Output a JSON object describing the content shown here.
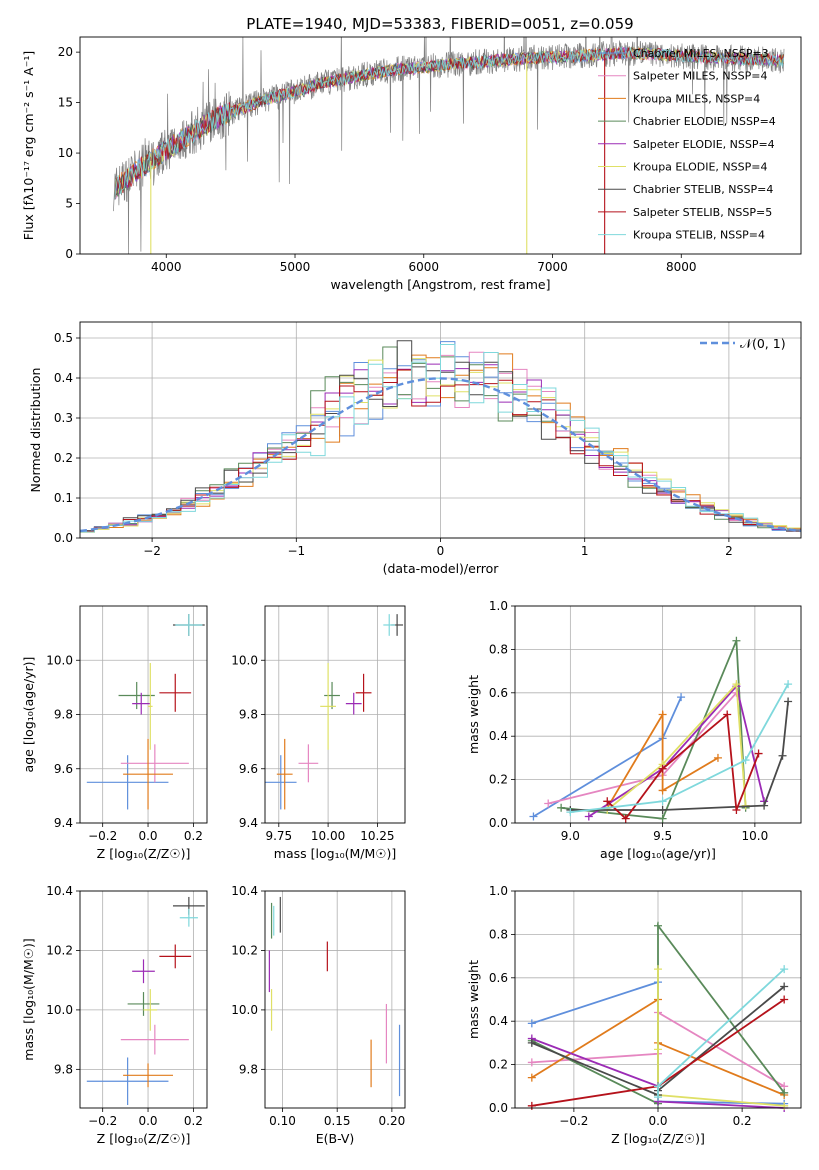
{
  "title": "PLATE=1940, MJD=53383, FIBERID=0051, z=0.059",
  "colors": {
    "chabrier_miles": "#5f8fdc",
    "salpeter_miles": "#e586c1",
    "kroupa_miles": "#e07b1c",
    "chabrier_elodie": "#5a8a5a",
    "salpeter_elodie": "#9b2bb5",
    "kroupa_elodie": "#dfe066",
    "chabrier_stelib": "#4a4a4a",
    "salpeter_stelib": "#b5121b",
    "kroupa_stelib": "#7fd8dc",
    "data": "#808080",
    "grid": "#b0b0b0"
  },
  "chart_data": [
    {
      "type": "line",
      "panel": "spectrum",
      "xlabel": "wavelength [Angstrom, rest frame]",
      "ylabel": "Flux [fλ10⁻¹⁷ erg cm⁻² s⁻¹ A⁻¹]",
      "xlim": [
        3330,
        8930
      ],
      "ylim": [
        0,
        21.5
      ],
      "xticks": [
        "4000",
        "5000",
        "6000",
        "7000",
        "8000"
      ],
      "yticks": [
        "0",
        "5",
        "10",
        "15",
        "20"
      ],
      "legend_loc": "right",
      "legend": [
        "Chabrier MILES, NSSP=3",
        "Salpeter MILES, NSSP=4",
        "Kroupa MILES, NSSP=4",
        "Chabrier ELODIE, NSSP=4",
        "Salpeter ELODIE, NSSP=4",
        "Kroupa ELODIE, NSSP=4",
        "Chabrier STELIB, NSSP=4",
        "Salpeter STELIB, NSSP=5",
        "Kroupa STELIB, NSSP=4"
      ],
      "legend_nssp": [
        "3",
        "4",
        "4",
        "4",
        "4",
        "4",
        "4",
        "5",
        "4"
      ],
      "continuum": {
        "x": [
          3600,
          3800,
          4000,
          4200,
          4400,
          4600,
          4800,
          5000,
          5200,
          5400,
          5600,
          5800,
          6000,
          6200,
          6400,
          6600,
          6800,
          7000,
          7200,
          7400,
          7600,
          7800,
          8000,
          8200,
          8400,
          8800
        ],
        "y": [
          6.5,
          8.5,
          10.3,
          12.0,
          13.5,
          14.5,
          15.4,
          16.1,
          16.9,
          17.4,
          17.9,
          18.3,
          18.5,
          18.8,
          19.0,
          19.2,
          19.4,
          19.5,
          19.6,
          19.8,
          19.9,
          19.8,
          19.6,
          19.5,
          19.4,
          19.2
        ]
      },
      "gaps": [
        {
          "x": 3880,
          "y": 0
        },
        {
          "x": 6800,
          "y": 0
        },
        {
          "x": 7405,
          "y": 0
        }
      ]
    },
    {
      "type": "area",
      "panel": "residuals",
      "xlabel": "(data-model)/error",
      "ylabel": "Normed distribution",
      "xlim": [
        -2.5,
        2.5
      ],
      "ylim": [
        0,
        0.54
      ],
      "xticks": [
        "−2",
        "−1",
        "0",
        "1",
        "2"
      ],
      "yticks": [
        "0.0",
        "0.1",
        "0.2",
        "0.3",
        "0.4",
        "0.5"
      ],
      "legend": "𝒩(0, 1)",
      "legend_loc": "upper right"
    },
    {
      "type": "scatter",
      "panel": "age_vs_Z",
      "xlabel": "Z [log₁₀(Z/Z☉)]",
      "ylabel": "age  [log₁₀(age/yr)]",
      "xlim": [
        -0.3,
        0.26
      ],
      "ylim": [
        9.4,
        10.2
      ],
      "xticks": [
        "−0.2",
        "0.0",
        "0.2"
      ],
      "yticks": [
        "9.4",
        "9.6",
        "9.8",
        "10.0"
      ],
      "points": [
        {
          "x": -0.09,
          "y": 9.55,
          "ex": 0.18,
          "ey": 0.1
        },
        {
          "x": 0.03,
          "y": 9.62,
          "ex": 0.15,
          "ey": 0.07
        },
        {
          "x": 0.0,
          "y": 9.58,
          "ex": 0.11,
          "ey": 0.13
        },
        {
          "x": -0.05,
          "y": 9.87,
          "ex": 0.08,
          "ey": 0.05
        },
        {
          "x": -0.03,
          "y": 9.84,
          "ex": 0.04,
          "ey": 0.04
        },
        {
          "x": 0.01,
          "y": 9.83,
          "ex": 0.01,
          "ey": 0.16
        },
        {
          "x": 0.18,
          "y": 10.13,
          "ex": 0.07,
          "ey": 0.04
        },
        {
          "x": 0.12,
          "y": 9.88,
          "ex": 0.07,
          "ey": 0.07
        },
        {
          "x": 0.18,
          "y": 10.13,
          "ex": 0.06,
          "ey": 0.04
        }
      ]
    },
    {
      "type": "scatter",
      "panel": "age_vs_mass",
      "xlabel": "mass [log₁₀(M/M☉)]",
      "ylabel": "",
      "xlim": [
        9.68,
        10.39
      ],
      "ylim": [
        9.4,
        10.2
      ],
      "xticks": [
        "9.75",
        "10.00",
        "10.25"
      ],
      "yticks": [
        "9.4",
        "9.6",
        "9.8",
        "10.0"
      ],
      "points": [
        {
          "x": 9.76,
          "y": 9.55,
          "ex": 0.08,
          "ey": 0.1
        },
        {
          "x": 9.9,
          "y": 9.62,
          "ex": 0.05,
          "ey": 0.07
        },
        {
          "x": 9.78,
          "y": 9.58,
          "ex": 0.04,
          "ey": 0.13
        },
        {
          "x": 10.02,
          "y": 9.87,
          "ex": 0.04,
          "ey": 0.05
        },
        {
          "x": 10.13,
          "y": 9.84,
          "ex": 0.04,
          "ey": 0.04
        },
        {
          "x": 10.0,
          "y": 9.83,
          "ex": 0.04,
          "ey": 0.16
        },
        {
          "x": 10.35,
          "y": 10.13,
          "ex": 0.03,
          "ey": 0.04
        },
        {
          "x": 10.18,
          "y": 9.88,
          "ex": 0.04,
          "ey": 0.07
        },
        {
          "x": 10.31,
          "y": 10.13,
          "ex": 0.03,
          "ey": 0.04
        }
      ]
    },
    {
      "type": "line",
      "panel": "mass_weight_vs_age",
      "xlabel": "age  [log₁₀(age/yr)]",
      "ylabel": "mass weight",
      "xlim": [
        8.7,
        10.25
      ],
      "ylim": [
        0,
        1.0
      ],
      "xticks": [
        "9.0",
        "9.5",
        "10.0"
      ],
      "yticks": [
        "0.0",
        "0.2",
        "0.4",
        "0.6",
        "0.8",
        "1.0"
      ],
      "series": [
        {
          "x": [
            8.8,
            9.5,
            9.6
          ],
          "y": [
            0.03,
            0.39,
            0.58
          ]
        },
        {
          "x": [
            8.88,
            9.5,
            9.9
          ],
          "y": [
            0.09,
            0.22,
            0.6
          ]
        },
        {
          "x": [
            9.2,
            9.5,
            9.5,
            9.8
          ],
          "y": [
            0.07,
            0.5,
            0.15,
            0.3
          ]
        },
        {
          "x": [
            8.95,
            9.5,
            9.9,
            9.95
          ],
          "y": [
            0.07,
            0.02,
            0.84,
            0.07
          ]
        },
        {
          "x": [
            9.1,
            9.5,
            9.9,
            10.05
          ],
          "y": [
            0.03,
            0.25,
            0.63,
            0.1
          ]
        },
        {
          "x": [
            9.2,
            9.5,
            9.9,
            9.95
          ],
          "y": [
            0.06,
            0.27,
            0.64,
            0.08
          ]
        },
        {
          "x": [
            9.0,
            9.5,
            10.05,
            10.15,
            10.18
          ],
          "y": [
            0.06,
            0.06,
            0.08,
            0.31,
            0.56
          ]
        },
        {
          "x": [
            9.2,
            9.3,
            9.5,
            9.85,
            9.9,
            10.02
          ],
          "y": [
            0.1,
            0.02,
            0.25,
            0.5,
            0.06,
            0.32
          ]
        },
        {
          "x": [
            9.0,
            9.5,
            9.95,
            10.18
          ],
          "y": [
            0.05,
            0.1,
            0.29,
            0.64
          ]
        }
      ]
    },
    {
      "type": "scatter",
      "panel": "mass_vs_Z",
      "xlabel": "Z [log₁₀(Z/Z☉)]",
      "ylabel": "mass [log₁₀(M/M☉)]",
      "xlim": [
        -0.3,
        0.26
      ],
      "ylim": [
        9.67,
        10.4
      ],
      "xticks": [
        "−0.2",
        "0.0",
        "0.2"
      ],
      "yticks": [
        "9.8",
        "10.0",
        "10.2",
        "10.4"
      ],
      "points": [
        {
          "x": -0.09,
          "y": 9.76,
          "ex": 0.18,
          "ey": 0.08
        },
        {
          "x": 0.03,
          "y": 9.9,
          "ex": 0.15,
          "ey": 0.05
        },
        {
          "x": 0.0,
          "y": 9.78,
          "ex": 0.11,
          "ey": 0.04
        },
        {
          "x": -0.02,
          "y": 10.02,
          "ex": 0.07,
          "ey": 0.04
        },
        {
          "x": -0.02,
          "y": 10.13,
          "ex": 0.05,
          "ey": 0.04
        },
        {
          "x": 0.01,
          "y": 10.0,
          "ex": 0.03,
          "ey": 0.07
        },
        {
          "x": 0.18,
          "y": 10.35,
          "ex": 0.07,
          "ey": 0.03
        },
        {
          "x": 0.12,
          "y": 10.18,
          "ex": 0.07,
          "ey": 0.04
        },
        {
          "x": 0.18,
          "y": 10.31,
          "ex": 0.04,
          "ey": 0.03
        }
      ]
    },
    {
      "type": "scatter",
      "panel": "mass_vs_EBV",
      "xlabel": "E(B-V)",
      "ylabel": "",
      "xlim": [
        0.084,
        0.212
      ],
      "ylim": [
        9.67,
        10.4
      ],
      "xticks": [
        "0.10",
        "0.15",
        "0.20"
      ],
      "yticks": [
        "9.8",
        "10.0",
        "10.2",
        "10.4"
      ],
      "points": [
        {
          "x": 0.207,
          "y": 9.83,
          "ex": 0,
          "ey": 0.12
        },
        {
          "x": 0.195,
          "y": 9.92,
          "ex": 0,
          "ey": 0.1
        },
        {
          "x": 0.181,
          "y": 9.82,
          "ex": 0,
          "ey": 0.08
        },
        {
          "x": 0.09,
          "y": 10.3,
          "ex": 0,
          "ey": 0.06
        },
        {
          "x": 0.088,
          "y": 10.13,
          "ex": 0,
          "ey": 0.07
        },
        {
          "x": 0.09,
          "y": 10.0,
          "ex": 0,
          "ey": 0.07
        },
        {
          "x": 0.098,
          "y": 10.32,
          "ex": 0,
          "ey": 0.06
        },
        {
          "x": 0.141,
          "y": 10.18,
          "ex": 0,
          "ey": 0.05
        },
        {
          "x": 0.092,
          "y": 10.3,
          "ex": 0,
          "ey": 0.05
        }
      ]
    },
    {
      "type": "line",
      "panel": "mass_weight_vs_Z",
      "xlabel": "Z [log₁₀(Z/Z☉)]",
      "ylabel": "mass weight",
      "xlim": [
        -0.34,
        0.34
      ],
      "ylim": [
        0,
        1.0
      ],
      "xticks": [
        "−0.2",
        "0.0",
        "0.2"
      ],
      "yticks": [
        "0.0",
        "0.2",
        "0.4",
        "0.6",
        "0.8",
        "1.0"
      ],
      "series": [
        {
          "x": [
            -0.3,
            0.0,
            0.0,
            0.3
          ],
          "y": [
            0.39,
            0.58,
            0.03,
            0.02
          ]
        },
        {
          "x": [
            -0.3,
            0.0,
            0.0,
            0.3
          ],
          "y": [
            0.21,
            0.25,
            0.44,
            0.1
          ]
        },
        {
          "x": [
            -0.3,
            0.0,
            0.0,
            0.3
          ],
          "y": [
            0.14,
            0.5,
            0.3,
            0.06
          ]
        },
        {
          "x": [
            -0.3,
            0.0,
            0.0,
            0.3
          ],
          "y": [
            0.31,
            0.02,
            0.84,
            0.07
          ]
        },
        {
          "x": [
            -0.3,
            0.0,
            0.0,
            0.3
          ],
          "y": [
            0.32,
            0.1,
            0.03,
            0.0
          ]
        },
        {
          "x": [
            0.0,
            0.0,
            0.0,
            0.3
          ],
          "y": [
            0.64,
            0.27,
            0.06,
            0.01
          ]
        },
        {
          "x": [
            -0.3,
            0.0,
            0.0,
            0.3
          ],
          "y": [
            0.3,
            0.06,
            0.08,
            0.56
          ]
        },
        {
          "x": [
            -0.3,
            0.0,
            0.0,
            0.3
          ],
          "y": [
            0.01,
            0.1,
            0.1,
            0.5
          ]
        },
        {
          "x": [
            0.0,
            0.0,
            0.3
          ],
          "y": [
            0.05,
            0.1,
            0.64
          ]
        }
      ]
    }
  ]
}
